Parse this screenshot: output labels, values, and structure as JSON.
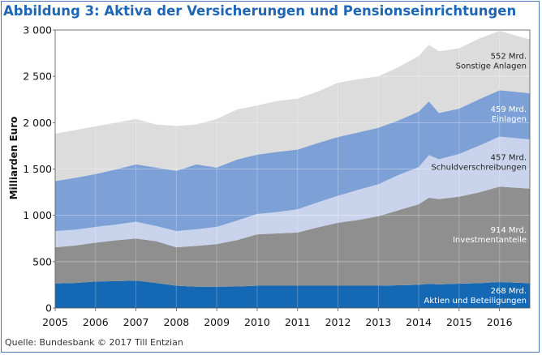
{
  "title": "Abbildung 3: Aktiva der Versicherungen und Pensionseinrichtungen",
  "source": "Quelle: Bundesbank © 2017 Till Entzian",
  "chart_data": {
    "type": "area",
    "stacked": true,
    "title": "Abbildung 3: Aktiva der Versicherungen und Pensionseinrichtungen",
    "ylabel": "Milliarden Euro",
    "xlabel": "",
    "ylim": [
      0,
      3000
    ],
    "xlim": [
      2005,
      2016.75
    ],
    "yticks": [
      "0",
      "500",
      "1 000",
      "1 500",
      "2 000",
      "2 500",
      "3 000"
    ],
    "ytick_values": [
      0,
      500,
      1000,
      1500,
      2000,
      2500,
      3000
    ],
    "xticks": [
      "2005",
      "2006",
      "2007",
      "2008",
      "2009",
      "2010",
      "2011",
      "2012",
      "2013",
      "2014",
      "2015",
      "2016"
    ],
    "xtick_values": [
      2005,
      2006,
      2007,
      2008,
      2009,
      2010,
      2011,
      2012,
      2013,
      2014,
      2015,
      2016
    ],
    "grid": true,
    "x": [
      2005,
      2005.5,
      2006,
      2006.5,
      2007,
      2007.5,
      2008,
      2008.5,
      2009,
      2009.5,
      2010,
      2010.5,
      2011,
      2011.5,
      2012,
      2012.5,
      2013,
      2013.5,
      2014,
      2014.25,
      2014.5,
      2015,
      2015.5,
      2016,
      2016.75
    ],
    "series": [
      {
        "name": "Aktien und Beteiligungen",
        "value_label": "268 Mrd.",
        "color": "#1468b4",
        "text_color": "#ffffff",
        "values": [
          265,
          270,
          285,
          290,
          295,
          270,
          240,
          230,
          230,
          232,
          240,
          240,
          240,
          240,
          240,
          240,
          240,
          245,
          250,
          260,
          255,
          262,
          268,
          280,
          268
        ]
      },
      {
        "name": "Investmentanteile",
        "value_label": "914 Mrd.",
        "color": "#8f8f8f",
        "text_color": "#ffffff",
        "values": [
          390,
          405,
          420,
          440,
          455,
          450,
          415,
          440,
          460,
          500,
          555,
          565,
          575,
          630,
          680,
          710,
          750,
          810,
          870,
          930,
          920,
          940,
          980,
          1030,
          1020
        ]
      },
      {
        "name": "Schuldverschreibungen",
        "value_label": "457 Mrd.",
        "color": "#c9d4ec",
        "text_color": "#222222",
        "values": [
          175,
          170,
          170,
          170,
          180,
          165,
          175,
          180,
          185,
          210,
          220,
          230,
          250,
          270,
          290,
          325,
          345,
          380,
          400,
          460,
          430,
          460,
          505,
          540,
          530
        ]
      },
      {
        "name": "Einlagen",
        "value_label": "459 Mrd.",
        "color": "#7da0d7",
        "text_color": "#ffffff",
        "values": [
          540,
          560,
          570,
          595,
          620,
          630,
          650,
          700,
          640,
          660,
          640,
          650,
          645,
          640,
          635,
          620,
          610,
          590,
          600,
          580,
          500,
          490,
          500,
          500,
          500
        ]
      },
      {
        "name": "Sonstige Anlagen",
        "value_label": "552 Mrd.",
        "color": "#dcdcdc",
        "text_color": "#222222",
        "values": [
          510,
          515,
          515,
          505,
          490,
          465,
          485,
          430,
          525,
          540,
          530,
          550,
          550,
          555,
          585,
          575,
          555,
          575,
          600,
          610,
          665,
          650,
          655,
          640,
          580
        ]
      }
    ]
  }
}
